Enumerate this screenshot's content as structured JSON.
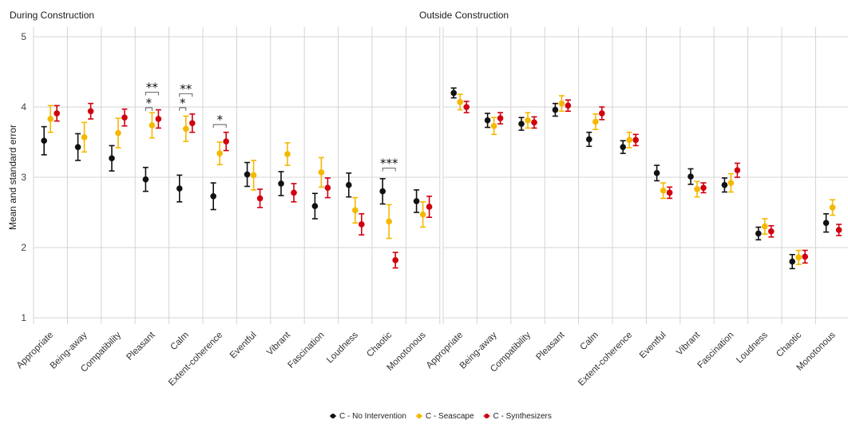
{
  "chart_data": {
    "type": "scatter",
    "ylabel": "Mean and standard error",
    "ylim": [
      1,
      5
    ],
    "yticks": [
      1,
      2,
      3,
      4,
      5
    ],
    "grid": true,
    "legend_position": "bottom",
    "categories": [
      "Appropriate",
      "Being-away",
      "Compatibility",
      "Pleasant",
      "Calm",
      "Extent-coherence",
      "Eventful",
      "Vibrant",
      "Fascination",
      "Loudness",
      "Chaotic",
      "Monotonous"
    ],
    "series_meta": [
      {
        "name": "C - No Intervention",
        "color": "#111111"
      },
      {
        "name": "C - Seascape",
        "color": "#f5b800"
      },
      {
        "name": "C - Synthesizers",
        "color": "#d0000f"
      }
    ],
    "facets": [
      {
        "title": "During Construction",
        "series": [
          {
            "name": "C - No Intervention",
            "values": [
              3.52,
              3.43,
              3.27,
              2.97,
              2.84,
              2.73,
              3.04,
              2.91,
              2.59,
              2.89,
              2.8,
              2.66
            ],
            "se": [
              0.2,
              0.19,
              0.18,
              0.17,
              0.19,
              0.19,
              0.17,
              0.17,
              0.18,
              0.17,
              0.18,
              0.16
            ]
          },
          {
            "name": "C - Seascape",
            "values": [
              3.83,
              3.57,
              3.63,
              3.74,
              3.69,
              3.34,
              3.03,
              3.33,
              3.07,
              2.53,
              2.37,
              2.47
            ],
            "se": [
              0.19,
              0.21,
              0.21,
              0.18,
              0.18,
              0.16,
              0.21,
              0.16,
              0.21,
              0.18,
              0.24,
              0.18
            ]
          },
          {
            "name": "C - Synthesizers",
            "values": [
              3.91,
              3.94,
              3.85,
              3.83,
              3.77,
              3.51,
              2.7,
              2.78,
              2.85,
              2.33,
              1.82,
              2.58
            ],
            "se": [
              0.11,
              0.11,
              0.12,
              0.13,
              0.13,
              0.13,
              0.13,
              0.13,
              0.14,
              0.15,
              0.11,
              0.15
            ]
          }
        ],
        "annotations": [
          {
            "category": "Pleasant",
            "from": "C - No Intervention",
            "to": "C - Seascape",
            "label": "*",
            "y": 3.99
          },
          {
            "category": "Pleasant",
            "from": "C - No Intervention",
            "to": "C - Synthesizers",
            "label": "**",
            "y": 4.21
          },
          {
            "category": "Calm",
            "from": "C - No Intervention",
            "to": "C - Seascape",
            "label": "*",
            "y": 3.99
          },
          {
            "category": "Calm",
            "from": "C - No Intervention",
            "to": "C - Synthesizers",
            "label": "**",
            "y": 4.19
          },
          {
            "category": "Extent-coherence",
            "from": "C - No Intervention",
            "to": "C - Synthesizers",
            "label": "*",
            "y": 3.75
          },
          {
            "category": "Chaotic",
            "from": "C - No Intervention",
            "to": "C - Synthesizers",
            "label": "***",
            "y": 3.13
          }
        ]
      },
      {
        "title": "Outside Construction",
        "series": [
          {
            "name": "C - No Intervention",
            "values": [
              4.2,
              3.81,
              3.76,
              3.96,
              3.54,
              3.43,
              3.06,
              3.01,
              2.89,
              2.2,
              1.8,
              2.35
            ],
            "se": [
              0.07,
              0.1,
              0.09,
              0.09,
              0.1,
              0.09,
              0.11,
              0.11,
              0.1,
              0.09,
              0.1,
              0.13
            ]
          },
          {
            "name": "C - Seascape",
            "values": [
              4.07,
              3.73,
              3.81,
              4.05,
              3.79,
              3.53,
              2.81,
              2.83,
              2.92,
              2.3,
              1.86,
              2.57
            ],
            "se": [
              0.11,
              0.12,
              0.11,
              0.11,
              0.11,
              0.11,
              0.11,
              0.11,
              0.13,
              0.11,
              0.1,
              0.11
            ]
          },
          {
            "name": "C - Synthesizers",
            "values": [
              4.0,
              3.84,
              3.78,
              4.02,
              3.91,
              3.53,
              2.78,
              2.85,
              3.1,
              2.23,
              1.87,
              2.25
            ],
            "se": [
              0.08,
              0.08,
              0.08,
              0.08,
              0.09,
              0.08,
              0.08,
              0.07,
              0.1,
              0.08,
              0.09,
              0.08
            ]
          }
        ],
        "annotations": []
      }
    ]
  }
}
